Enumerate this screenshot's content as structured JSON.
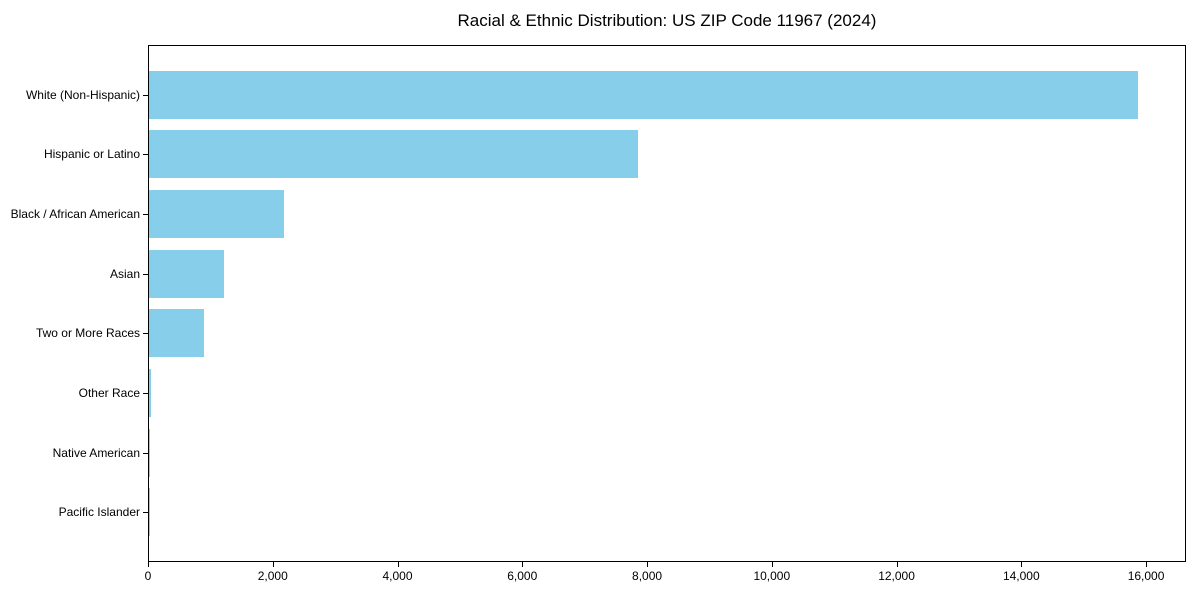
{
  "chart_data": {
    "type": "bar",
    "orientation": "horizontal",
    "title": "Racial & Ethnic Distribution: US ZIP Code 11967 (2024)",
    "categories": [
      "White (Non-Hispanic)",
      "Hispanic or Latino",
      "Black / African American",
      "Asian",
      "Two or More Races",
      "Other Race",
      "Native American",
      "Pacific Islander"
    ],
    "values": [
      15850,
      7840,
      2160,
      1200,
      880,
      25,
      12,
      5
    ],
    "xlabel": "",
    "ylabel": "",
    "xlim": [
      0,
      16640
    ],
    "xticks": [
      0,
      2000,
      4000,
      6000,
      8000,
      10000,
      12000,
      14000,
      16000
    ],
    "xtick_labels": [
      "0",
      "2,000",
      "4,000",
      "6,000",
      "8,000",
      "10,000",
      "12,000",
      "14,000",
      "16,000"
    ],
    "bar_color": "#87CEEB",
    "spine_color": "#000000",
    "grid": false,
    "legend": null
  }
}
